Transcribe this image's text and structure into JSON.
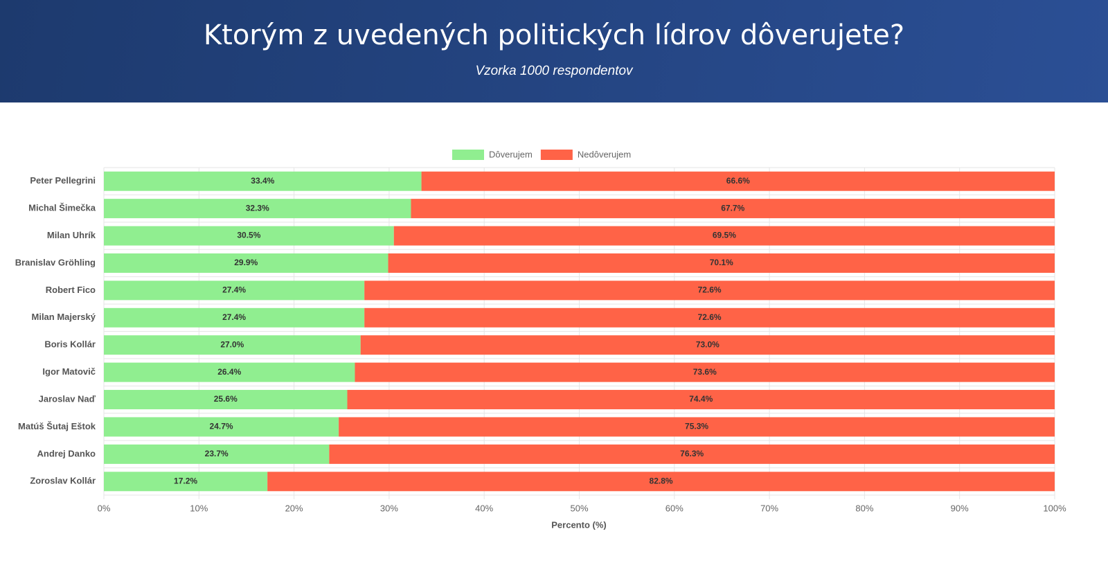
{
  "chart_data": {
    "type": "bar",
    "orientation": "horizontal",
    "stacked": true,
    "title": "Ktorým z uvedených politických lídrov dôverujete?",
    "subtitle": "Vzorka 1000 respondentov",
    "x_label": "Percento (%)",
    "categories": [
      "Peter Pellegrini",
      "Michal Šimečka",
      "Milan Uhrík",
      "Branislav Gröhling",
      "Robert Fico",
      "Milan Majerský",
      "Boris Kollár",
      "Igor Matovič",
      "Jaroslav Naď",
      "Matúš Šutaj Eštok",
      "Andrej Danko",
      "Zoroslav Kollár"
    ],
    "series": [
      {
        "name": "Dôverujem",
        "color": "#90ee90",
        "values": [
          33.4,
          32.3,
          30.5,
          29.9,
          27.4,
          27.4,
          27.0,
          26.4,
          25.6,
          24.7,
          23.7,
          17.2
        ],
        "value_labels": [
          "33.4%",
          "32.3%",
          "30.5%",
          "29.9%",
          "27.4%",
          "27.4%",
          "27.0%",
          "26.4%",
          "25.6%",
          "24.7%",
          "23.7%",
          "17.2%"
        ]
      },
      {
        "name": "Nedôverujem",
        "color": "#ff6347",
        "values": [
          66.6,
          67.7,
          69.5,
          70.1,
          72.6,
          72.6,
          73.0,
          73.6,
          74.4,
          75.3,
          76.3,
          82.8
        ],
        "value_labels": [
          "66.6%",
          "67.7%",
          "69.5%",
          "70.1%",
          "72.6%",
          "72.6%",
          "73.0%",
          "73.6%",
          "74.4%",
          "75.3%",
          "76.3%",
          "82.8%"
        ]
      }
    ],
    "xlim": [
      0,
      100
    ],
    "xticks": [
      {
        "value": 0,
        "label": "0%"
      },
      {
        "value": 10,
        "label": "10%"
      },
      {
        "value": 20,
        "label": "20%"
      },
      {
        "value": 30,
        "label": "30%"
      },
      {
        "value": 40,
        "label": "40%"
      },
      {
        "value": 50,
        "label": "50%"
      },
      {
        "value": 60,
        "label": "60%"
      },
      {
        "value": 70,
        "label": "70%"
      },
      {
        "value": 80,
        "label": "80%"
      },
      {
        "value": 90,
        "label": "90%"
      },
      {
        "value": 100,
        "label": "100%"
      }
    ],
    "grid": true,
    "legend": "top"
  }
}
